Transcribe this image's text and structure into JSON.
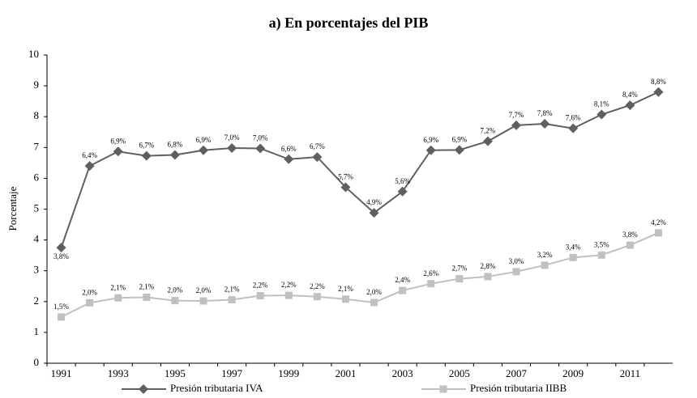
{
  "chart_data": {
    "type": "line",
    "title": "a) En porcentajes del PIB",
    "y_label": "Porcentaje",
    "categories": [
      "1991",
      null,
      "1993",
      null,
      "1995",
      null,
      "1997",
      null,
      "1999",
      null,
      "2001",
      null,
      "2003",
      null,
      "2005",
      null,
      "2007",
      null,
      "2009",
      null,
      "2011",
      null
    ],
    "series": [
      {
        "name": "Presión tributaria IVA",
        "color": "#5f5f5f",
        "marker": "diamond",
        "values": [
          3.75,
          6.4,
          6.87,
          6.73,
          6.76,
          6.91,
          6.98,
          6.97,
          6.62,
          6.69,
          5.71,
          4.88,
          5.57,
          6.91,
          6.92,
          7.2,
          7.72,
          7.77,
          7.62,
          8.07,
          8.37,
          8.8
        ],
        "value_labels": [
          "3,8%",
          "6,4%",
          "6,9%",
          "6,7%",
          "6,8%",
          "6,9%",
          "7,0%",
          "7,0%",
          "6,6%",
          "6,7%",
          "5,7%",
          "4,9%",
          "5,6%",
          "6,9%",
          "6,9%",
          "7,2%",
          "7,7%",
          "7,8%",
          "7,6%",
          "8,1%",
          "8,4%",
          "8,8%"
        ]
      },
      {
        "name": "Presión tributaria IIBB",
        "color": "#c0c0c0",
        "marker": "square",
        "values": [
          1.5,
          1.96,
          2.12,
          2.14,
          2.03,
          2.02,
          2.06,
          2.19,
          2.2,
          2.16,
          2.08,
          1.97,
          2.36,
          2.58,
          2.74,
          2.81,
          2.97,
          3.18,
          3.43,
          3.51,
          3.83,
          4.23
        ],
        "value_labels": [
          "1,5%",
          "2,0%",
          "2,1%",
          "2,1%",
          "2,0%",
          "2,0%",
          "2,1%",
          "2,2%",
          "2,2%",
          "2,2%",
          "2,1%",
          "2,0%",
          "2,4%",
          "2,6%",
          "2,7%",
          "2,8%",
          "3,0%",
          "3,2%",
          "3,4%",
          "3,5%",
          "3,8%",
          "4,2%"
        ]
      }
    ],
    "ylim": [
      0,
      10
    ],
    "yticks": [
      0,
      1,
      2,
      3,
      4,
      5,
      6,
      7,
      8,
      9,
      10
    ],
    "grid": false,
    "legend": "bottom"
  }
}
